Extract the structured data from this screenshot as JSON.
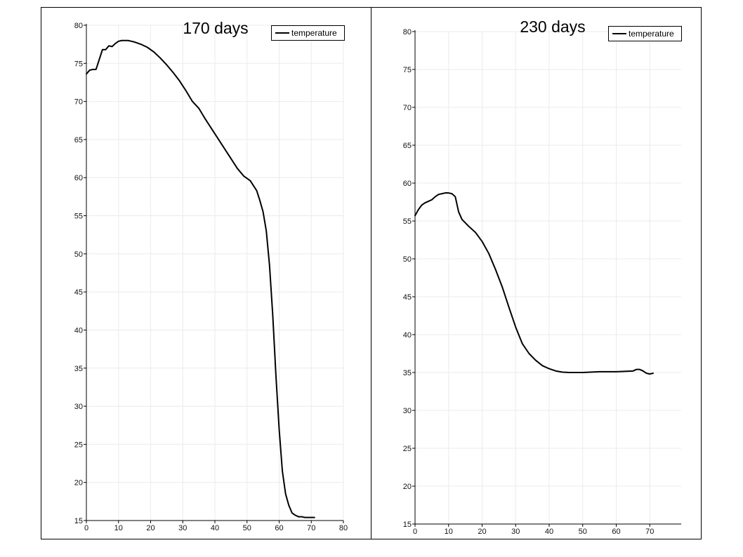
{
  "chart_data": [
    {
      "type": "line",
      "title": "170 days",
      "xlabel": "",
      "ylabel": "",
      "xlim": [
        0,
        80
      ],
      "ylim": [
        15,
        80
      ],
      "xticks": [
        0,
        10,
        20,
        30,
        40,
        50,
        60,
        70,
        80
      ],
      "yticks": [
        15,
        20,
        25,
        30,
        35,
        40,
        45,
        50,
        55,
        60,
        65,
        70,
        75,
        80
      ],
      "grid": true,
      "legend": "top-right",
      "series": [
        {
          "name": "temperature",
          "color": "#000000",
          "x": [
            0,
            1,
            2,
            3,
            4,
            5,
            6,
            7,
            8,
            9,
            10,
            11,
            12,
            13,
            14,
            15,
            17,
            19,
            21,
            23,
            25,
            27,
            29,
            31,
            33,
            35,
            37,
            39,
            41,
            43,
            45,
            47,
            49,
            51,
            53,
            54,
            55,
            56,
            57,
            58,
            59,
            60,
            61,
            62,
            63,
            64,
            65,
            66,
            67,
            68,
            69,
            70,
            71
          ],
          "values": [
            73.6,
            74.1,
            74.2,
            74.2,
            75.5,
            76.8,
            76.8,
            77.3,
            77.2,
            77.6,
            77.9,
            78.0,
            78.0,
            78.0,
            77.9,
            77.8,
            77.5,
            77.1,
            76.5,
            75.7,
            74.8,
            73.8,
            72.7,
            71.4,
            70.0,
            69.1,
            67.7,
            66.4,
            65.1,
            63.8,
            62.5,
            61.2,
            60.2,
            59.6,
            58.3,
            57.0,
            55.5,
            53.0,
            48.5,
            42.0,
            34.0,
            27.0,
            21.5,
            18.5,
            17.0,
            16.0,
            15.7,
            15.5,
            15.5,
            15.4,
            15.4,
            15.4,
            15.4
          ]
        }
      ]
    },
    {
      "type": "line",
      "title": "230 days",
      "xlabel": "",
      "ylabel": "",
      "xlim": [
        0,
        80
      ],
      "ylim": [
        15,
        80
      ],
      "xticks": [
        0,
        10,
        20,
        30,
        40,
        50,
        60,
        70
      ],
      "yticks": [
        15,
        20,
        25,
        30,
        35,
        40,
        45,
        50,
        55,
        60,
        65,
        70,
        75,
        80
      ],
      "grid": true,
      "legend": "top-right",
      "series": [
        {
          "name": "temperature",
          "color": "#000000",
          "x": [
            0,
            1,
            2,
            3,
            4,
            5,
            6,
            7,
            8,
            9,
            10,
            11,
            12,
            13,
            14,
            16,
            18,
            20,
            22,
            24,
            26,
            28,
            30,
            32,
            34,
            36,
            38,
            40,
            42,
            44,
            46,
            48,
            50,
            55,
            60,
            65,
            66,
            67,
            68,
            69,
            70,
            71
          ],
          "values": [
            55.7,
            56.5,
            57.1,
            57.4,
            57.6,
            57.8,
            58.2,
            58.5,
            58.6,
            58.7,
            58.7,
            58.6,
            58.2,
            56.2,
            55.2,
            54.3,
            53.5,
            52.3,
            50.7,
            48.6,
            46.3,
            43.6,
            41.0,
            38.8,
            37.5,
            36.6,
            35.9,
            35.5,
            35.2,
            35.05,
            35.0,
            35.0,
            35.0,
            35.1,
            35.1,
            35.2,
            35.4,
            35.4,
            35.2,
            34.9,
            34.8,
            34.9
          ]
        }
      ]
    }
  ]
}
